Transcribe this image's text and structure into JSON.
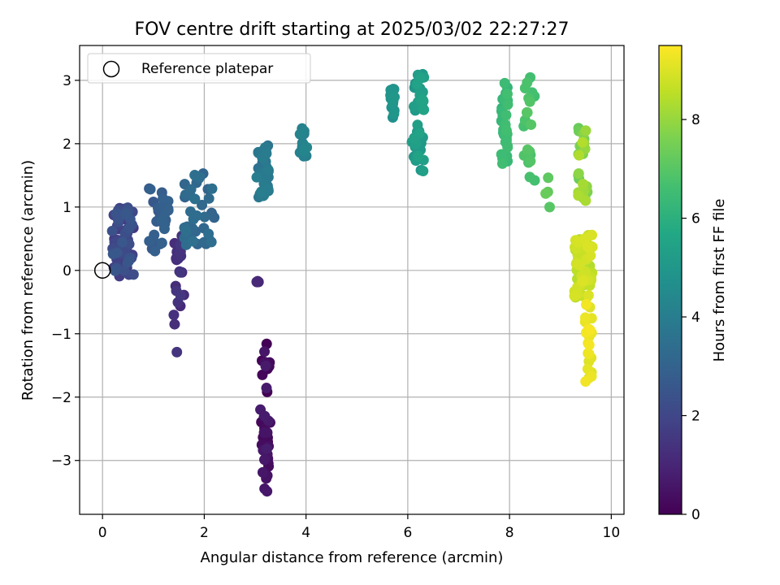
{
  "chart_data": {
    "type": "scatter",
    "title": "FOV centre drift starting at 2025/03/02 22:27:27",
    "xlabel": "Angular distance from reference (arcmin)",
    "ylabel": "Rotation from reference (arcmin)",
    "xlim": [
      -0.45,
      10.25
    ],
    "ylim": [
      -3.85,
      3.55
    ],
    "xticks": [
      0,
      2,
      4,
      6,
      8,
      10
    ],
    "xtick_labels": [
      "0",
      "2",
      "4",
      "6",
      "8",
      "10"
    ],
    "yticks": [
      -3,
      -2,
      -1,
      0,
      1,
      2,
      3
    ],
    "ytick_labels": [
      "−3",
      "−2",
      "−1",
      "0",
      "1",
      "2",
      "3"
    ],
    "grid": true,
    "legend": {
      "position": "upper-left",
      "entries": [
        {
          "label": "Reference platepar",
          "marker": "open-circle"
        }
      ]
    },
    "reference_point": {
      "x": 0,
      "y": 0
    },
    "colorbar": {
      "label": "Hours from first FF file",
      "colormap": "viridis",
      "range": [
        0,
        9.5
      ],
      "ticks": [
        0,
        2,
        4,
        6,
        8
      ],
      "tick_labels": [
        "0",
        "2",
        "4",
        "6",
        "8"
      ]
    },
    "clusters": [
      {
        "hours": [
          0.0,
          0.75
        ],
        "x_center": 3.2,
        "x_spread": 0.1,
        "y_range": [
          -3.5,
          -1.15
        ],
        "count": 40
      },
      {
        "hours": [
          0.8,
          1.1
        ],
        "x_center": 3.05,
        "x_spread": 0.02,
        "y_range": [
          -0.2,
          -0.17
        ],
        "count": 4
      },
      {
        "hours": [
          1.1,
          1.5
        ],
        "x_center": 1.5,
        "x_spread": 0.1,
        "y_range": [
          -1.3,
          0.55
        ],
        "count": 22
      },
      {
        "hours": [
          1.5,
          2.6
        ],
        "x_center": 0.4,
        "x_spread": 0.22,
        "y_range": [
          -0.1,
          1.0
        ],
        "count": 70
      },
      {
        "hours": [
          2.6,
          3.0
        ],
        "x_center": 1.1,
        "x_spread": 0.2,
        "y_range": [
          0.3,
          1.3
        ],
        "count": 30
      },
      {
        "hours": [
          3.0,
          3.5
        ],
        "x_center": 1.9,
        "x_spread": 0.3,
        "y_range": [
          0.35,
          1.55
        ],
        "count": 40
      },
      {
        "hours": [
          3.5,
          4.0
        ],
        "x_center": 3.15,
        "x_spread": 0.12,
        "y_range": [
          1.15,
          2.0
        ],
        "count": 40
      },
      {
        "hours": [
          4.0,
          4.3
        ],
        "x_center": 3.95,
        "x_spread": 0.08,
        "y_range": [
          1.8,
          2.25
        ],
        "count": 15
      },
      {
        "hours": [
          4.7,
          5.0
        ],
        "x_center": 5.7,
        "x_spread": 0.05,
        "y_range": [
          2.4,
          2.95
        ],
        "count": 12
      },
      {
        "hours": [
          5.0,
          5.5
        ],
        "x_center": 6.2,
        "x_spread": 0.12,
        "y_range": [
          1.55,
          3.1
        ],
        "count": 38
      },
      {
        "hours": [
          6.2,
          6.6
        ],
        "x_center": 7.9,
        "x_spread": 0.07,
        "y_range": [
          1.65,
          3.0
        ],
        "count": 35
      },
      {
        "hours": [
          6.6,
          7.0
        ],
        "x_center": 8.4,
        "x_spread": 0.12,
        "y_range": [
          1.4,
          3.25
        ],
        "count": 20
      },
      {
        "hours": [
          7.0,
          7.3
        ],
        "x_center": 8.75,
        "x_spread": 0.05,
        "y_range": [
          0.9,
          1.5
        ],
        "count": 4
      },
      {
        "hours": [
          7.3,
          8.4
        ],
        "x_center": 9.45,
        "x_spread": 0.1,
        "y_range": [
          1.1,
          2.35
        ],
        "count": 25
      },
      {
        "hours": [
          8.4,
          9.0
        ],
        "x_center": 9.45,
        "x_spread": 0.18,
        "y_range": [
          -0.45,
          0.6
        ],
        "count": 60
      },
      {
        "hours": [
          9.0,
          9.4
        ],
        "x_center": 9.55,
        "x_spread": 0.07,
        "y_range": [
          -1.8,
          -0.5
        ],
        "count": 25
      }
    ]
  }
}
